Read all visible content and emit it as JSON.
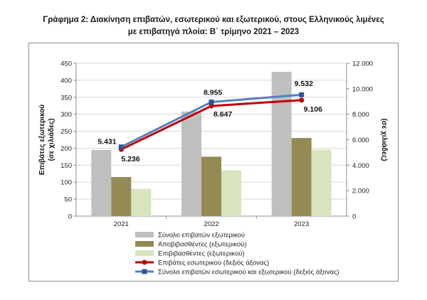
{
  "title_line1": "Γράφημα 2: Διακίνηση επιβατών, εσωτερικού και εξωτερικού, στους Ελληνικούς λιμένες",
  "title_line2": "με επιβατηγά πλοία: Β΄ τρίμηνο 2021 – 2023",
  "chart_data": {
    "type": "bar",
    "title": "Γράφημα 2: Διακίνηση επιβατών, εσωτερικού και εξωτερικού, στους Ελληνικούς λιμένες με επιβατηγά πλοία: Β΄ τρίμηνο 2021 – 2023",
    "categories": [
      "2021",
      "2022",
      "2023"
    ],
    "ylabel_left": "Επιβάτες εξωτερικού (σε χιλιάδες)",
    "ylabel_right": "(σε χιλιάδες)",
    "ylim_left": [
      0,
      450
    ],
    "ylim_right": [
      0,
      12000
    ],
    "yticks_left": [
      "0",
      "50",
      "100",
      "150",
      "200",
      "250",
      "300",
      "350",
      "400",
      "450"
    ],
    "yticks_right": [
      "0",
      "2.000",
      "4.000",
      "6.000",
      "8.000",
      "10.000",
      "12.000"
    ],
    "grid": true,
    "legend_position": "bottom",
    "series": [
      {
        "name": "Σύνολο επιβατών εξωτερικού",
        "kind": "bar",
        "axis": "left",
        "color": "#bfbfbf",
        "values": [
          195,
          308,
          425
        ]
      },
      {
        "name": "Αποβιβασθέντες (εξωτερικού)",
        "kind": "bar",
        "axis": "left",
        "color": "#948a54",
        "values": [
          115,
          175,
          230
        ]
      },
      {
        "name": "Επιβιβασθέντες (εξωτερικού)",
        "kind": "bar",
        "axis": "left",
        "color": "#d7e4bd",
        "values": [
          80,
          135,
          196
        ]
      },
      {
        "name": "Επιβάτες εσωτερικού (δεξιός άξονας)",
        "kind": "line",
        "axis": "right",
        "color": "#c00000",
        "values": [
          5236,
          8647,
          9106
        ],
        "labels": [
          "5.236",
          "8.647",
          "9.106"
        ]
      },
      {
        "name": "Σύνολο επιβατών εσωτερικού και εξωτερικού (δεξιός άξονας)",
        "kind": "line",
        "axis": "right",
        "color": "#4f81bd",
        "values": [
          5431,
          8955,
          9532
        ],
        "labels": [
          "5.431",
          "8.955",
          "9.532"
        ]
      }
    ]
  }
}
